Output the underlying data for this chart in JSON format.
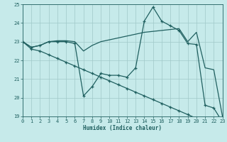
{
  "xlabel": "Humidex (Indice chaleur)",
  "xlim": [
    0,
    23
  ],
  "ylim": [
    19,
    25
  ],
  "yticks": [
    19,
    20,
    21,
    22,
    23,
    24,
    25
  ],
  "xticks": [
    0,
    1,
    2,
    3,
    4,
    5,
    6,
    7,
    8,
    9,
    10,
    11,
    12,
    13,
    14,
    15,
    16,
    17,
    18,
    19,
    20,
    21,
    22,
    23
  ],
  "bg_color": "#c6eaea",
  "grid_color": "#a0c8c8",
  "line_color": "#206060",
  "line1_x": [
    0,
    1,
    2,
    3,
    4,
    5,
    6,
    7,
    8,
    9,
    10,
    11,
    12,
    13,
    14,
    15,
    16,
    17,
    18,
    19,
    20,
    21,
    22,
    23
  ],
  "line1_y": [
    23.0,
    22.7,
    22.8,
    23.0,
    23.05,
    23.05,
    23.0,
    22.5,
    22.8,
    23.0,
    23.1,
    23.2,
    23.3,
    23.4,
    23.5,
    23.55,
    23.6,
    23.65,
    23.7,
    23.0,
    23.5,
    21.6,
    21.5,
    19.0
  ],
  "line2_x": [
    0,
    1,
    2,
    3,
    4,
    5,
    6,
    7,
    8,
    9,
    10,
    11,
    12,
    13,
    14,
    15,
    16,
    17,
    18,
    19,
    20,
    21,
    22,
    23
  ],
  "line2_y": [
    23.0,
    22.7,
    22.8,
    23.0,
    23.0,
    23.0,
    22.9,
    20.1,
    20.6,
    21.3,
    21.2,
    21.2,
    21.1,
    21.6,
    24.1,
    24.85,
    24.1,
    23.85,
    23.6,
    22.9,
    22.85,
    19.6,
    19.45,
    18.7
  ],
  "line3_x": [
    0,
    1,
    2,
    3,
    4,
    5,
    6,
    7,
    8,
    9,
    10,
    11,
    12,
    13,
    14,
    15,
    16,
    17,
    18,
    19,
    20,
    21,
    22,
    23
  ],
  "line3_y": [
    23.0,
    22.6,
    22.5,
    22.3,
    22.1,
    21.9,
    21.7,
    21.5,
    21.3,
    21.1,
    20.9,
    20.7,
    20.5,
    20.3,
    20.1,
    19.9,
    19.7,
    19.5,
    19.3,
    19.1,
    18.9,
    18.7,
    18.7,
    18.65
  ]
}
